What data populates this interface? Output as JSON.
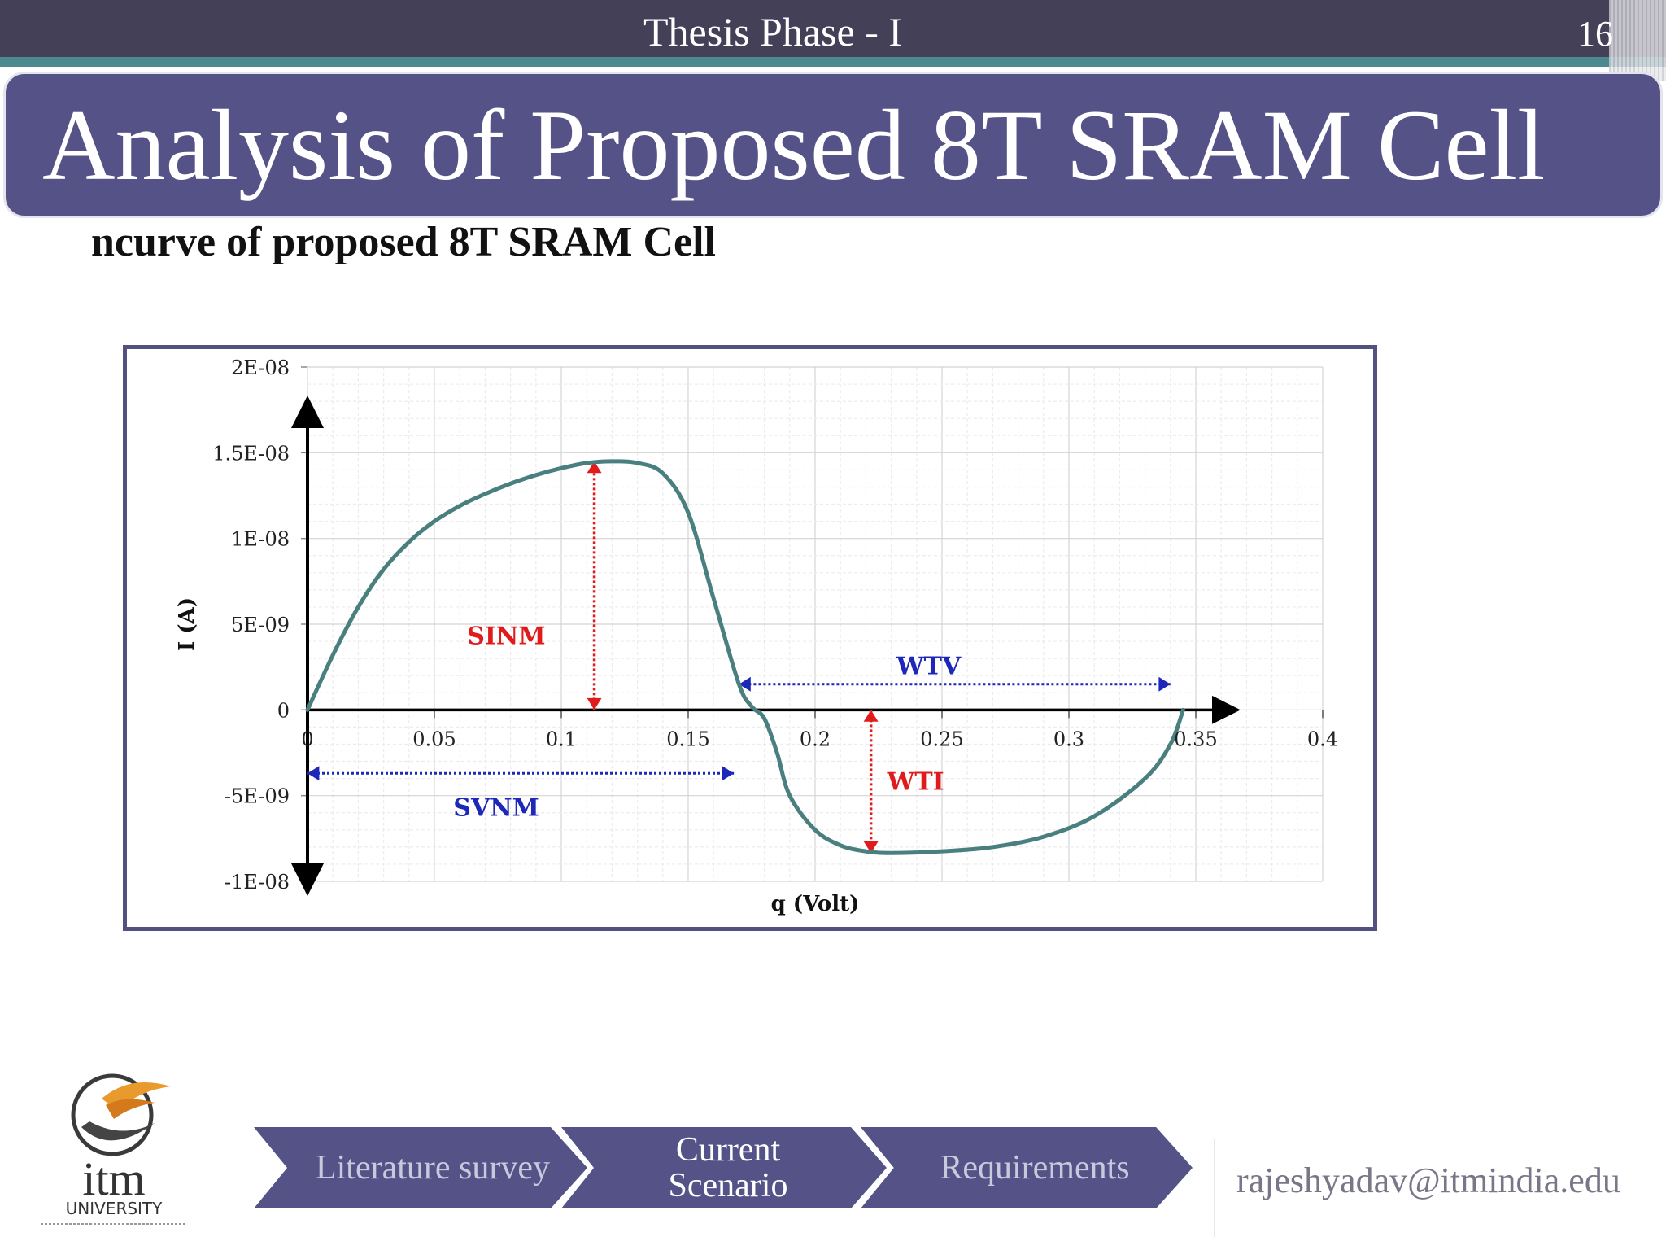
{
  "header": {
    "title": "Thesis Phase - I",
    "slide_number": "16"
  },
  "main_title": "Analysis of Proposed 8T SRAM Cell",
  "subtitle": "ncurve of proposed 8T SRAM Cell",
  "chart_data": {
    "type": "line",
    "xlabel": "q (Volt)",
    "ylabel": "I (A)",
    "xlim": [
      0,
      0.4
    ],
    "ylim": [
      -1e-08,
      2e-08
    ],
    "x_ticks": [
      "0",
      "0.05",
      "0.1",
      "0.15",
      "0.2",
      "0.25",
      "0.3",
      "0.35",
      "0.4"
    ],
    "y_ticks": [
      "2E-08",
      "1.5E-08",
      "1E-08",
      "5E-09",
      "0",
      "-5E-09",
      "-1E-08"
    ],
    "grid": true,
    "series": [
      {
        "color": "#4a7f80",
        "points": [
          [
            0,
            0
          ],
          [
            0.01,
            3.2e-09
          ],
          [
            0.02,
            6e-09
          ],
          [
            0.03,
            8.2e-09
          ],
          [
            0.04,
            9.8e-09
          ],
          [
            0.05,
            1.1e-08
          ],
          [
            0.06,
            1.19e-08
          ],
          [
            0.07,
            1.26e-08
          ],
          [
            0.08,
            1.32e-08
          ],
          [
            0.09,
            1.37e-08
          ],
          [
            0.1,
            1.41e-08
          ],
          [
            0.11,
            1.44e-08
          ],
          [
            0.12,
            1.45e-08
          ],
          [
            0.13,
            1.44e-08
          ],
          [
            0.14,
            1.38e-08
          ],
          [
            0.15,
            1.15e-08
          ],
          [
            0.16,
            6.5e-09
          ],
          [
            0.17,
            1.5e-09
          ],
          [
            0.175,
            2e-10
          ],
          [
            0.18,
            -5e-10
          ],
          [
            0.185,
            -2.5e-09
          ],
          [
            0.19,
            -5e-09
          ],
          [
            0.2,
            -7e-09
          ],
          [
            0.21,
            -7.9e-09
          ],
          [
            0.22,
            -8.25e-09
          ],
          [
            0.23,
            -8.35e-09
          ],
          [
            0.25,
            -8.25e-09
          ],
          [
            0.27,
            -8e-09
          ],
          [
            0.29,
            -7.4e-09
          ],
          [
            0.31,
            -6.2e-09
          ],
          [
            0.33,
            -4e-09
          ],
          [
            0.34,
            -2e-09
          ],
          [
            0.345,
            0
          ]
        ]
      }
    ],
    "annotations": [
      {
        "label": "SINM",
        "color": "#e01b1b",
        "x": 0.113,
        "y_from": 0,
        "y_to": 1.45e-08,
        "orientation": "vertical"
      },
      {
        "label": "WTV",
        "color": "#1d27b8",
        "y": 1.5e-09,
        "x_from": 0.17,
        "x_to": 0.34,
        "orientation": "horizontal"
      },
      {
        "label": "WTI",
        "color": "#e01b1b",
        "x": 0.222,
        "y_from": 0,
        "y_to": -8.35e-09,
        "orientation": "vertical"
      },
      {
        "label": "SVNM",
        "color": "#1d27b8",
        "y": -3.7e-09,
        "x_from": 0,
        "x_to": 0.168,
        "orientation": "horizontal"
      }
    ]
  },
  "footer": {
    "logo_text": "itm",
    "logo_sub": "UNIVERSITY",
    "nav": [
      "Literature survey",
      "Current Scenario",
      "Requirements"
    ],
    "email": "rajeshyadav@itmindia.edu"
  }
}
